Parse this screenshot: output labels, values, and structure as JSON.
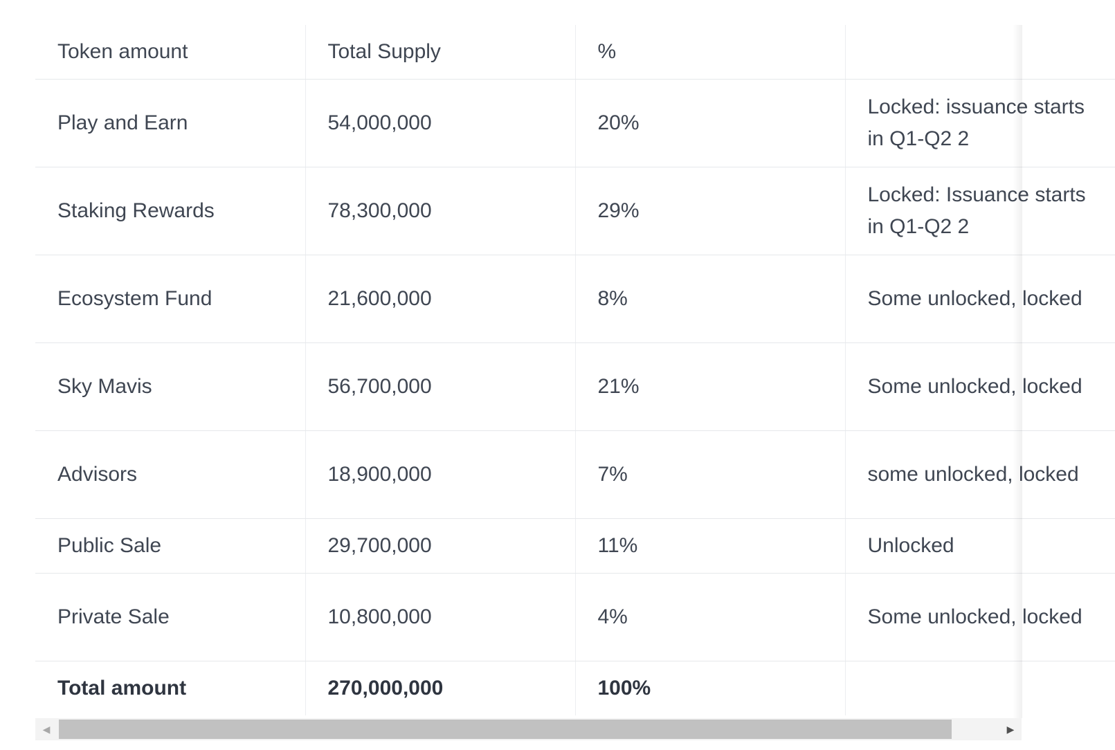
{
  "table": {
    "headers": [
      "Token amount",
      "Total Supply",
      "%",
      ""
    ],
    "rows": [
      {
        "name": "Play and Earn",
        "supply": "54,000,000",
        "percent": "20%",
        "status": "Locked: issuance starts in Q1-Q2 2"
      },
      {
        "name": "Staking Rewards",
        "supply": "78,300,000",
        "percent": "29%",
        "status": "Locked: Issuance starts in Q1-Q2 2"
      },
      {
        "name": "Ecosystem Fund",
        "supply": "21,600,000",
        "percent": "8%",
        "status": "Some unlocked, locked"
      },
      {
        "name": "Sky Mavis",
        "supply": "56,700,000",
        "percent": "21%",
        "status": "Some unlocked, locked"
      },
      {
        "name": "Advisors",
        "supply": "18,900,000",
        "percent": "7%",
        "status": "some unlocked, locked"
      },
      {
        "name": "Public Sale",
        "supply": "29,700,000",
        "percent": "11%",
        "status": "Unlocked"
      },
      {
        "name": "Private Sale",
        "supply": "10,800,000",
        "percent": "4%",
        "status": "Some unlocked, locked"
      }
    ],
    "total": {
      "name": "Total amount",
      "supply": "270,000,000",
      "percent": "100%",
      "status": ""
    }
  },
  "scrollbar": {
    "left_icon": "triangle-left-icon",
    "right_icon": "triangle-right-icon",
    "left_glyph": "◀",
    "right_glyph": "▶",
    "position_fraction": 0.0,
    "visible_fraction": 0.9
  }
}
